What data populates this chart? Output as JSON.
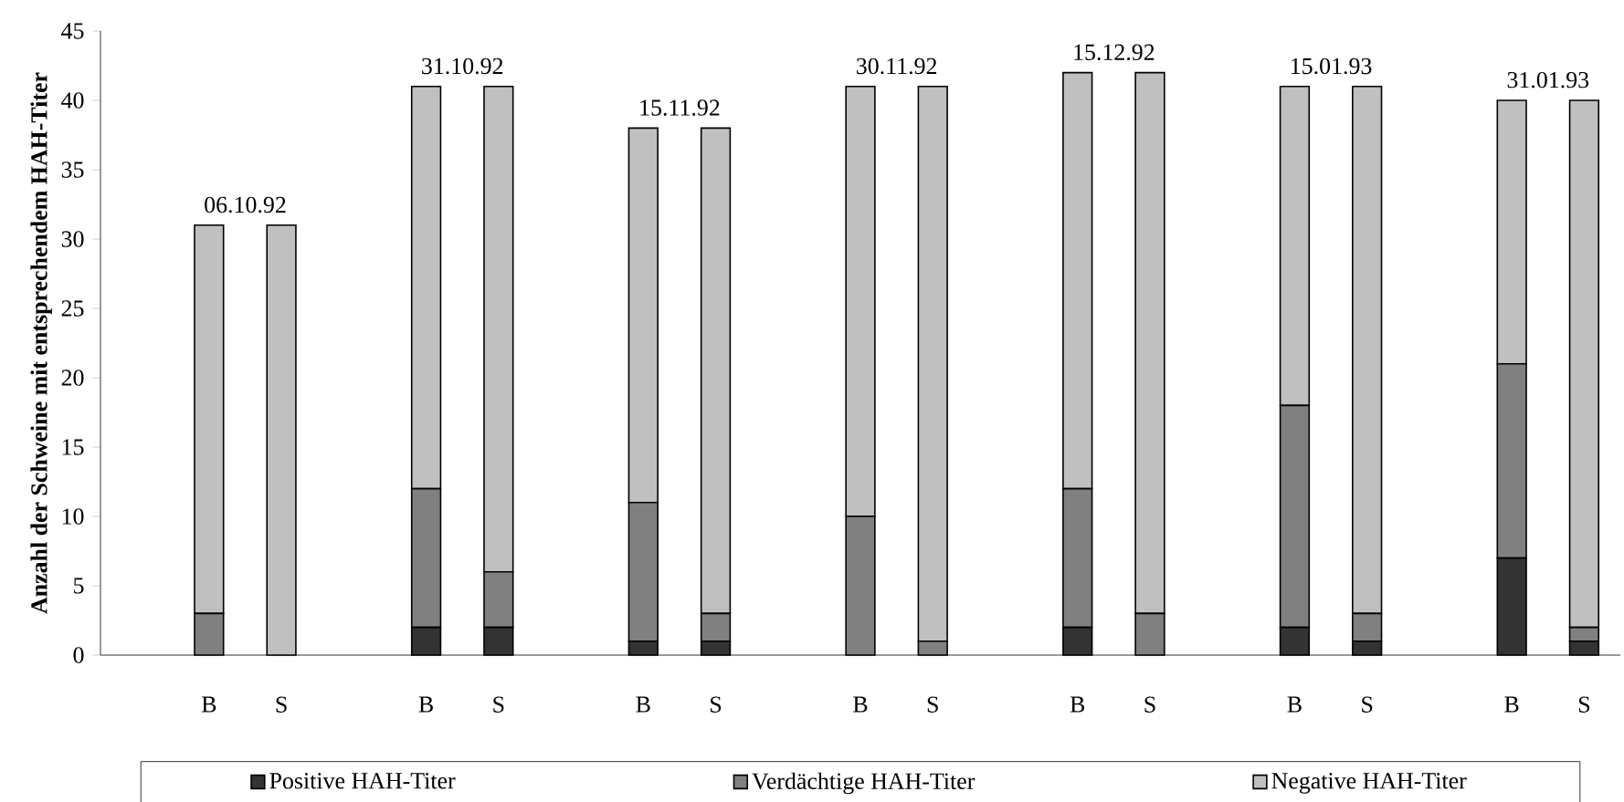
{
  "chart_data": {
    "type": "bar",
    "stacked": true,
    "ylabel": "Anzahl der Schweine mit entsprechendem HAH-Titer",
    "categories": [
      null,
      "B",
      "S",
      null,
      "B",
      "S",
      null,
      "B",
      "S",
      null,
      "B",
      "S",
      null,
      "B",
      "S",
      null,
      "B",
      "S",
      null,
      "B",
      "S"
    ],
    "series": [
      {
        "name": "Positive HAH-Titer",
        "color": "#333333",
        "values": [
          null,
          0,
          0,
          null,
          2,
          2,
          null,
          1,
          1,
          null,
          0,
          0,
          null,
          2,
          0,
          null,
          2,
          1,
          null,
          7,
          1
        ]
      },
      {
        "name": "Verdächtige HAH-Titer",
        "color": "#808080",
        "values": [
          null,
          3,
          0,
          null,
          10,
          4,
          null,
          10,
          2,
          null,
          10,
          1,
          null,
          10,
          3,
          null,
          16,
          2,
          null,
          14,
          1
        ]
      },
      {
        "name": "Negative HAH-Titer",
        "color": "#c0c0c0",
        "values": [
          null,
          28,
          31,
          null,
          29,
          35,
          null,
          27,
          35,
          null,
          31,
          40,
          null,
          30,
          39,
          null,
          23,
          38,
          null,
          19,
          38
        ]
      }
    ],
    "annotations": [
      "06.10.92",
      "31.10.92",
      "15.11.92",
      "30.11.92",
      "15.12.92",
      "15.01.93",
      "31.01.93"
    ],
    "ylim": [
      0,
      45
    ],
    "yticks": [
      0,
      5,
      10,
      15,
      20,
      25,
      30,
      35,
      40,
      45
    ],
    "grid": false,
    "legend": "bottom"
  }
}
